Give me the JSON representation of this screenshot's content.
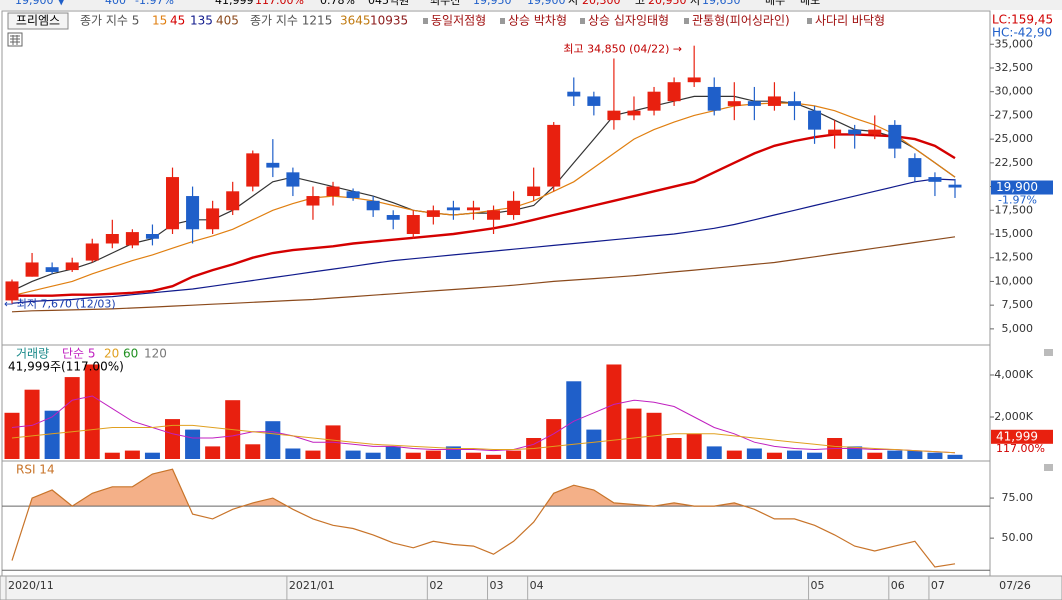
{
  "top_bar": [
    "19,900 ▼",
    "400",
    "-1.97%",
    "41,999",
    "117.00%",
    "0.78%",
    "045억원",
    "최우선",
    "19,950",
    "19,900",
    "시",
    "20,300",
    "고",
    "20,950",
    "저",
    "19,650",
    "매수",
    "매도"
  ],
  "legend": {
    "stock": "프리엠스",
    "ma_label": "종가 지수 5",
    "ma_periods": [
      "15",
      "45",
      "135",
      "405"
    ],
    "ma_label2": "종가 지수 1215",
    "ma_periods2": [
      "3645",
      "10935"
    ],
    "patterns": [
      "동일저점형",
      "상승 박차형",
      "상승 십자잉태형",
      "관통형(피어싱라인)",
      "사다리 바닥형"
    ]
  },
  "chart_data": [
    {
      "type": "candlestick",
      "lc": "LC:159,45",
      "hc": "HC:-42,90",
      "price_box": "19,900",
      "change": "-1.97%",
      "high_note": "최고 34,850 (04/22) →",
      "low_note": "← 최저 7,670 (12/03)",
      "axis_end_label": "07/26",
      "up_color": "#e8200f",
      "down_color": "#1f5fc9",
      "categories": [
        "2020/11",
        null,
        null,
        null,
        null,
        null,
        null,
        null,
        null,
        null,
        null,
        null,
        null,
        null,
        "2021/01",
        null,
        null,
        null,
        null,
        null,
        null,
        "02",
        null,
        null,
        "03",
        null,
        "04",
        null,
        null,
        null,
        null,
        null,
        null,
        null,
        null,
        null,
        null,
        null,
        null,
        null,
        "05",
        null,
        null,
        null,
        "06",
        null,
        "07",
        null
      ],
      "open": [
        8000,
        10500,
        11500,
        11200,
        12200,
        14000,
        13800,
        15000,
        15500,
        19000,
        15500,
        17500,
        20000,
        22500,
        21500,
        18000,
        19000,
        19500,
        18500,
        17000,
        15000,
        16800,
        17800,
        17500,
        16500,
        17000,
        19000,
        20000,
        30000,
        29500,
        27000,
        27500,
        28000,
        29000,
        31000,
        30500,
        28500,
        29000,
        28500,
        29000,
        28000,
        25500,
        26000,
        25500,
        26500,
        23000,
        21000,
        20200
      ],
      "high": [
        10200,
        13000,
        12000,
        12500,
        14500,
        16500,
        15500,
        16000,
        22000,
        20000,
        18500,
        20500,
        23800,
        25000,
        22000,
        20000,
        20500,
        19800,
        19000,
        17500,
        17500,
        18000,
        18500,
        18500,
        18000,
        19500,
        22000,
        26800,
        31500,
        30000,
        33500,
        29500,
        30500,
        31500,
        34850,
        31500,
        31000,
        30500,
        31000,
        30000,
        28500,
        27000,
        26500,
        27500,
        27000,
        23500,
        21500,
        20800
      ],
      "low": [
        7670,
        10500,
        10800,
        11000,
        12000,
        13500,
        13500,
        13800,
        15000,
        14000,
        15000,
        17000,
        19500,
        21000,
        19000,
        16500,
        18000,
        18500,
        16800,
        15500,
        14500,
        16000,
        16500,
        16500,
        15000,
        16500,
        18500,
        19500,
        28500,
        27500,
        26000,
        27000,
        27500,
        28500,
        30500,
        27500,
        27000,
        27000,
        28000,
        27000,
        24500,
        24000,
        24000,
        25000,
        23000,
        20500,
        19000,
        18800
      ],
      "close": [
        10000,
        12000,
        11000,
        12000,
        14000,
        15000,
        15200,
        14500,
        21000,
        15500,
        17700,
        19500,
        23500,
        22000,
        20000,
        19000,
        20000,
        18800,
        17500,
        16500,
        17000,
        17500,
        17500,
        17800,
        17500,
        18500,
        20000,
        26500,
        29500,
        28500,
        28000,
        28000,
        30000,
        31000,
        31500,
        28000,
        29000,
        28500,
        29500,
        28500,
        26000,
        26000,
        25500,
        26000,
        24000,
        21000,
        20500,
        19900
      ],
      "series": [
        {
          "name": "5",
          "color": "#333333",
          "values": [
            9000,
            10000,
            10800,
            11300,
            12000,
            13000,
            14000,
            14500,
            16000,
            16500,
            16500,
            17500,
            19000,
            20500,
            21000,
            20500,
            20000,
            19500,
            19000,
            18300,
            17500,
            17200,
            17000,
            17200,
            17200,
            17500,
            18000,
            20000,
            22500,
            25000,
            27500,
            28000,
            28500,
            29000,
            29500,
            29500,
            29500,
            29000,
            29000,
            28800,
            28000,
            27000,
            26000,
            25800,
            25200,
            24000,
            22500,
            21000
          ]
        },
        {
          "name": "15",
          "color": "#e07f10",
          "values": [
            8500,
            9000,
            9500,
            10000,
            10800,
            11500,
            12200,
            12800,
            13500,
            14200,
            14800,
            15500,
            16500,
            17500,
            18200,
            18800,
            19000,
            18800,
            18500,
            18000,
            17500,
            17200,
            17000,
            17200,
            17500,
            17800,
            18500,
            19500,
            20500,
            22000,
            23500,
            25000,
            26000,
            26800,
            27500,
            28000,
            28500,
            28700,
            28800,
            28800,
            28500,
            28000,
            27200,
            26500,
            25500,
            24000,
            22500,
            21000
          ]
        },
        {
          "name": "45",
          "color": "#d40000",
          "values": [
            8500,
            8500,
            8500,
            8600,
            8600,
            8700,
            8800,
            9000,
            9500,
            10500,
            11200,
            11800,
            12500,
            13000,
            13300,
            13500,
            13700,
            14000,
            14200,
            14400,
            14600,
            14800,
            15000,
            15300,
            15600,
            16000,
            16500,
            17000,
            17500,
            18000,
            18500,
            19000,
            19500,
            20000,
            20500,
            21500,
            22500,
            23500,
            24300,
            24800,
            25200,
            25500,
            25500,
            25400,
            25300,
            25000,
            24300,
            23000
          ]
        },
        {
          "name": "135",
          "color": "#101a8c",
          "values": [
            7700,
            7900,
            8000,
            8100,
            8300,
            8400,
            8600,
            8800,
            9000,
            9200,
            9500,
            9800,
            10100,
            10400,
            10700,
            11000,
            11300,
            11600,
            11900,
            12200,
            12400,
            12600,
            12800,
            13000,
            13200,
            13400,
            13600,
            13800,
            14000,
            14200,
            14400,
            14600,
            14800,
            15000,
            15300,
            15600,
            16000,
            16500,
            17000,
            17500,
            18000,
            18500,
            19000,
            19500,
            20000,
            20500,
            20800,
            20700
          ]
        },
        {
          "name": "405",
          "color": "#8b4a1c",
          "values": [
            6800,
            6900,
            6950,
            7000,
            7050,
            7100,
            7200,
            7300,
            7400,
            7500,
            7600,
            7700,
            7800,
            7900,
            8000,
            8100,
            8250,
            8400,
            8550,
            8700,
            8850,
            9000,
            9150,
            9300,
            9450,
            9600,
            9800,
            10000,
            10150,
            10300,
            10450,
            10600,
            10800,
            11000,
            11200,
            11400,
            11600,
            11800,
            12000,
            12300,
            12600,
            12900,
            13200,
            13500,
            13800,
            14100,
            14400,
            14700
          ]
        }
      ],
      "ylim": [
        3300,
        38400
      ],
      "yticks": [
        {
          "value": 35000,
          "label": "35,000"
        },
        {
          "value": 32500,
          "label": "32,500"
        },
        {
          "value": 30000,
          "label": "30,000"
        },
        {
          "value": 27500,
          "label": "27,500"
        },
        {
          "value": 25000,
          "label": "25,000"
        },
        {
          "value": 22500,
          "label": "22,500"
        },
        {
          "value": 20000,
          "label": "20,000"
        },
        {
          "value": 17500,
          "label": "17,500"
        },
        {
          "value": 15000,
          "label": "15,000"
        },
        {
          "value": 12500,
          "label": "12,500"
        },
        {
          "value": 10000,
          "label": "10,000"
        },
        {
          "value": 7500,
          "label": "7,500"
        },
        {
          "value": 5000,
          "label": "5,000"
        }
      ]
    },
    {
      "type": "bar",
      "title": "거래량",
      "legend_ma": [
        "단순 5",
        "20",
        "60",
        "120"
      ],
      "summary": "41,999주(117.00%)",
      "volume_box": "41,999",
      "ratio": "117.00%",
      "values": [
        2200000,
        3300000,
        2300000,
        3900000,
        4500000,
        300000,
        400000,
        300000,
        1900000,
        1400000,
        600000,
        2800000,
        700000,
        1800000,
        500000,
        400000,
        1600000,
        400000,
        300000,
        600000,
        300000,
        400000,
        600000,
        300000,
        200000,
        400000,
        1000000,
        1900000,
        3700000,
        1400000,
        4500000,
        2400000,
        2200000,
        1000000,
        1200000,
        600000,
        400000,
        500000,
        300000,
        400000,
        300000,
        1000000,
        600000,
        300000,
        400000,
        400000,
        300000,
        200000
      ],
      "series": [
        {
          "name": "단순 5",
          "color": "#c020c0",
          "values": [
            1500000,
            1600000,
            2000000,
            2800000,
            3000000,
            2400000,
            1800000,
            1500000,
            1200000,
            1000000,
            1000000,
            1100000,
            1300000,
            1300000,
            1100000,
            800000,
            800000,
            700000,
            600000,
            600000,
            500000,
            450000,
            450000,
            450000,
            400000,
            450000,
            700000,
            1200000,
            1800000,
            2200000,
            2600000,
            2800000,
            2700000,
            2500000,
            2000000,
            1500000,
            1200000,
            800000,
            600000,
            500000,
            450000,
            500000,
            500000,
            450000,
            450000,
            400000,
            350000,
            300000
          ]
        },
        {
          "name": "20",
          "color": "#e0a020",
          "values": [
            1000000,
            1100000,
            1200000,
            1300000,
            1400000,
            1500000,
            1500000,
            1500000,
            1600000,
            1600000,
            1500000,
            1400000,
            1300000,
            1200000,
            1100000,
            1000000,
            900000,
            800000,
            700000,
            650000,
            600000,
            550000,
            500000,
            500000,
            450000,
            450000,
            500000,
            600000,
            700000,
            800000,
            900000,
            1000000,
            1100000,
            1200000,
            1200000,
            1200000,
            1100000,
            1000000,
            900000,
            800000,
            700000,
            600000,
            550000,
            500000,
            450000,
            400000,
            350000,
            300000
          ]
        }
      ],
      "ylim": [
        0,
        5380000
      ],
      "yticks": [
        {
          "value": 4000000,
          "label": "4,000K"
        },
        {
          "value": 2000000,
          "label": "2,000K"
        }
      ]
    },
    {
      "type": "line",
      "title": "RSI 14",
      "color": "#c8742a",
      "fill": "#f4b088",
      "values": [
        36,
        75,
        80,
        70,
        78,
        82,
        82,
        90,
        93,
        65,
        62,
        68,
        72,
        75,
        68,
        62,
        58,
        56,
        52,
        47,
        44,
        48,
        46,
        45,
        40,
        48,
        60,
        78,
        83,
        80,
        72,
        71,
        70,
        72,
        70,
        70,
        72,
        68,
        62,
        62,
        58,
        52,
        45,
        42,
        45,
        48,
        32,
        34
      ],
      "levels": [
        70,
        30
      ],
      "ylim": [
        27,
        97.5
      ],
      "yticks": [
        {
          "value": 75,
          "label": "75.00"
        },
        {
          "value": 50,
          "label": "50.00"
        }
      ]
    }
  ]
}
